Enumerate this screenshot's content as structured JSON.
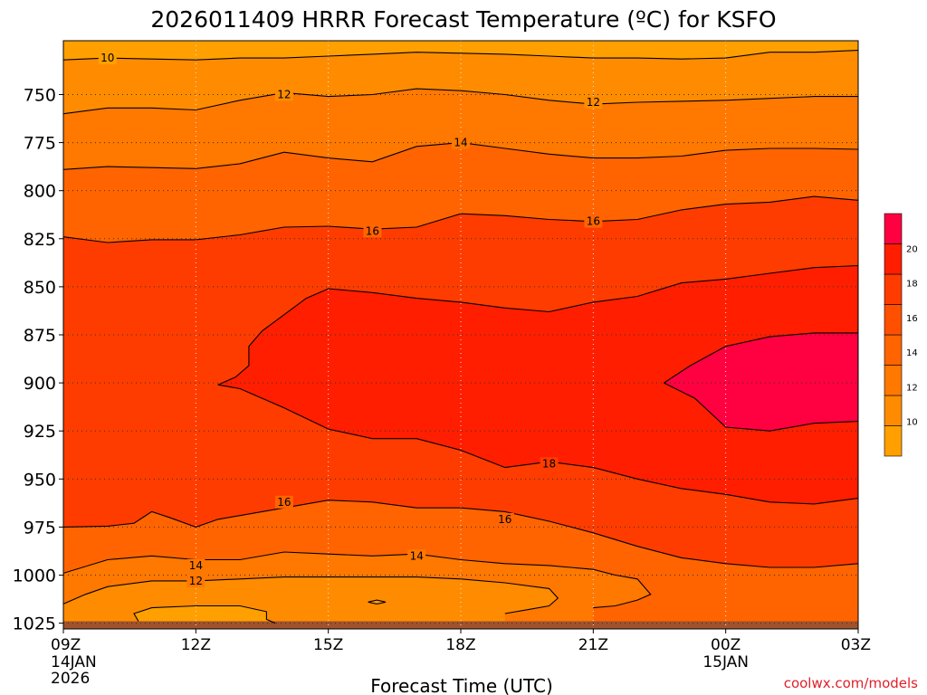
{
  "chart_data": {
    "type": "heatmap",
    "title": "2026011409 HRRR Forecast Temperature (ºC) for KSFO",
    "xlabel": "Forecast Time (UTC)",
    "ylabel": "",
    "credit": "coolwx.com/models",
    "x_ticks": [
      {
        "hour": 0,
        "label": "09Z",
        "sub1": "14JAN",
        "sub2": "2026"
      },
      {
        "hour": 3,
        "label": "12Z",
        "sub1": "",
        "sub2": ""
      },
      {
        "hour": 6,
        "label": "15Z",
        "sub1": "",
        "sub2": ""
      },
      {
        "hour": 9,
        "label": "18Z",
        "sub1": "",
        "sub2": ""
      },
      {
        "hour": 12,
        "label": "21Z",
        "sub1": "",
        "sub2": ""
      },
      {
        "hour": 15,
        "label": "00Z",
        "sub1": "15JAN",
        "sub2": ""
      },
      {
        "hour": 18,
        "label": "03Z",
        "sub1": "",
        "sub2": ""
      }
    ],
    "y_ticks": [
      750,
      775,
      800,
      825,
      850,
      875,
      900,
      925,
      950,
      975,
      1000,
      1025
    ],
    "xlim": [
      0,
      18
    ],
    "ylim_hpa": [
      722,
      1028
    ],
    "colorbar": {
      "ticks": [
        10,
        12,
        14,
        16,
        18,
        20
      ],
      "min": 8,
      "max": 22,
      "colors": [
        "#FFA000",
        "#FF8C00",
        "#FF7800",
        "#FF6400",
        "#FF5000",
        "#FF3C00",
        "#FF1E00",
        "#FF0040"
      ]
    },
    "band_colors": {
      "lt10": "#FFA000",
      "t10_12": "#FF8C00",
      "t12_14": "#FF7800",
      "t14_16": "#FF6400",
      "t16_18": "#FF3C00",
      "t18_20": "#FF1E00",
      "gt20": "#FF0040",
      "ground": "#A0522D"
    },
    "contours": [
      {
        "level": 10,
        "points": [
          [
            0,
            732
          ],
          [
            1,
            731
          ],
          [
            2,
            731.5
          ],
          [
            3,
            732
          ],
          [
            4,
            731
          ],
          [
            5,
            731
          ],
          [
            6,
            730
          ],
          [
            7,
            729
          ],
          [
            8,
            728
          ],
          [
            9,
            728.5
          ],
          [
            10,
            729
          ],
          [
            11,
            730
          ],
          [
            12,
            731
          ],
          [
            13,
            731
          ],
          [
            14,
            731.5
          ],
          [
            15,
            731
          ],
          [
            16,
            728
          ],
          [
            17,
            728
          ],
          [
            18,
            727
          ]
        ],
        "labels": [
          {
            "x": 1,
            "p": 731,
            "text": "10"
          }
        ]
      },
      {
        "level": 12,
        "points": [
          [
            0,
            760
          ],
          [
            1,
            757
          ],
          [
            2,
            757
          ],
          [
            3,
            758
          ],
          [
            4,
            753
          ],
          [
            5,
            749
          ],
          [
            6,
            751
          ],
          [
            7,
            750
          ],
          [
            8,
            747
          ],
          [
            9,
            748
          ],
          [
            10,
            750
          ],
          [
            11,
            753
          ],
          [
            12,
            755
          ],
          [
            13,
            754
          ],
          [
            14,
            753.5
          ],
          [
            15,
            753
          ],
          [
            16,
            752
          ],
          [
            17,
            751
          ],
          [
            18,
            751
          ]
        ],
        "labels": [
          {
            "x": 5,
            "p": 750,
            "text": "12"
          },
          {
            "x": 12,
            "p": 754,
            "text": "12"
          }
        ]
      },
      {
        "level": 14,
        "points": [
          [
            0,
            789
          ],
          [
            1,
            787.5
          ],
          [
            2,
            788
          ],
          [
            3,
            788.5
          ],
          [
            4,
            786
          ],
          [
            5,
            780
          ],
          [
            6,
            783
          ],
          [
            7,
            785
          ],
          [
            8,
            777
          ],
          [
            9,
            775
          ],
          [
            10,
            778
          ],
          [
            11,
            781
          ],
          [
            12,
            783
          ],
          [
            13,
            783
          ],
          [
            14,
            782
          ],
          [
            15,
            779
          ],
          [
            16,
            778
          ],
          [
            17,
            778
          ],
          [
            18,
            778.5
          ]
        ],
        "labels": [
          {
            "x": 9,
            "p": 775,
            "text": "14"
          }
        ]
      },
      {
        "level": 16,
        "points": [
          [
            0,
            824
          ],
          [
            1,
            827
          ],
          [
            2,
            825.5
          ],
          [
            3,
            825.5
          ],
          [
            4,
            823
          ],
          [
            5,
            819
          ],
          [
            6,
            818.5
          ],
          [
            7,
            820
          ],
          [
            8,
            819
          ],
          [
            9,
            812
          ],
          [
            10,
            813
          ],
          [
            11,
            815
          ],
          [
            12,
            816
          ],
          [
            13,
            815
          ],
          [
            14,
            810
          ],
          [
            15,
            807
          ],
          [
            16,
            806
          ],
          [
            17,
            803
          ],
          [
            18,
            805
          ]
        ],
        "labels": [
          {
            "x": 7,
            "p": 821,
            "text": "16"
          },
          {
            "x": 12,
            "p": 816,
            "text": "16"
          }
        ]
      },
      {
        "level": 16,
        "points": [
          [
            0,
            975
          ],
          [
            1,
            974.5
          ],
          [
            1.6,
            973
          ],
          [
            2,
            967
          ],
          [
            2.4,
            970
          ],
          [
            3,
            975
          ],
          [
            3.5,
            971
          ],
          [
            4,
            969
          ],
          [
            5,
            965
          ],
          [
            6,
            961
          ],
          [
            7,
            962
          ],
          [
            8,
            965
          ],
          [
            9,
            965
          ],
          [
            10,
            967
          ],
          [
            11,
            972
          ],
          [
            12,
            978
          ],
          [
            13,
            985
          ],
          [
            14,
            991
          ],
          [
            15,
            994
          ],
          [
            16,
            996
          ],
          [
            17,
            996
          ],
          [
            18,
            994
          ]
        ],
        "labels": [
          {
            "x": 5,
            "p": 962,
            "text": "16"
          },
          {
            "x": 10,
            "p": 971,
            "text": "16"
          }
        ]
      },
      {
        "level": 18,
        "points": [
          [
            3.5,
            901
          ],
          [
            3.9,
            897
          ],
          [
            4.2,
            891
          ],
          [
            4.2,
            881
          ],
          [
            4.5,
            873
          ],
          [
            5.5,
            856
          ],
          [
            6,
            851
          ],
          [
            7,
            853
          ],
          [
            8,
            856
          ],
          [
            9,
            858
          ],
          [
            10,
            861
          ],
          [
            11,
            863
          ],
          [
            12,
            858
          ],
          [
            13,
            855
          ],
          [
            14,
            848
          ],
          [
            15,
            846
          ],
          [
            16,
            843
          ],
          [
            17,
            840
          ],
          [
            18,
            839
          ],
          [
            18,
            960
          ],
          [
            17,
            963
          ],
          [
            16,
            962
          ],
          [
            15,
            958
          ],
          [
            14,
            955
          ],
          [
            13,
            950
          ],
          [
            12,
            944
          ],
          [
            11,
            941
          ],
          [
            10,
            944
          ],
          [
            9,
            935
          ],
          [
            8,
            929
          ],
          [
            7,
            929
          ],
          [
            6,
            924
          ],
          [
            5,
            913
          ],
          [
            4.5,
            908
          ],
          [
            4,
            903
          ],
          [
            3.5,
            901
          ]
        ],
        "labels": [
          {
            "x": 11,
            "p": 942,
            "text": "18"
          }
        ]
      },
      {
        "level": 20,
        "points": [
          [
            13.6,
            900
          ],
          [
            14.2,
            891
          ],
          [
            15,
            881
          ],
          [
            16,
            876
          ],
          [
            17,
            874
          ],
          [
            18,
            874
          ],
          [
            18,
            920
          ],
          [
            17,
            921
          ],
          [
            16,
            925
          ],
          [
            15,
            923
          ],
          [
            14.3,
            908
          ],
          [
            13.6,
            900
          ]
        ],
        "labels": []
      },
      {
        "level": 14,
        "points": [
          [
            0,
            999
          ],
          [
            1,
            992
          ],
          [
            2,
            990
          ],
          [
            3,
            992
          ],
          [
            4,
            992
          ],
          [
            5,
            988
          ],
          [
            6,
            989
          ],
          [
            7,
            990
          ],
          [
            8,
            989
          ],
          [
            9,
            992
          ],
          [
            10,
            994
          ],
          [
            11,
            995
          ],
          [
            12,
            997
          ],
          [
            12.5,
            1000
          ],
          [
            13,
            1002
          ],
          [
            13.3,
            1010
          ],
          [
            13,
            1013
          ],
          [
            12.5,
            1016
          ],
          [
            12,
            1017
          ]
        ],
        "labels": [
          {
            "x": 3,
            "p": 995,
            "text": "14"
          },
          {
            "x": 8,
            "p": 990,
            "text": "14"
          }
        ]
      },
      {
        "level": 12,
        "points": [
          [
            0,
            1015
          ],
          [
            0.5,
            1010
          ],
          [
            1,
            1006
          ],
          [
            2,
            1003
          ],
          [
            3,
            1003
          ],
          [
            4,
            1002
          ],
          [
            5,
            1001
          ],
          [
            6,
            1001
          ],
          [
            7,
            1001
          ],
          [
            8,
            1001
          ],
          [
            9,
            1002
          ],
          [
            10,
            1004
          ],
          [
            11,
            1007
          ],
          [
            11.2,
            1012
          ],
          [
            11,
            1016
          ],
          [
            10.5,
            1018
          ],
          [
            10,
            1020
          ]
        ],
        "labels": [
          {
            "x": 3,
            "p": 1003,
            "text": "12"
          }
        ]
      },
      {
        "level": 10,
        "points": [
          [
            1.7,
            1024
          ],
          [
            1.6,
            1020
          ],
          [
            2,
            1017
          ],
          [
            3,
            1016
          ],
          [
            4,
            1016
          ],
          [
            4.6,
            1019
          ],
          [
            4.6,
            1023
          ],
          [
            4.8,
            1025
          ]
        ],
        "labels": []
      },
      {
        "level": 10,
        "points": [
          [
            6.9,
            1014
          ],
          [
            7.1,
            1013
          ],
          [
            7.3,
            1014
          ],
          [
            7.1,
            1015
          ],
          [
            6.9,
            1014
          ]
        ],
        "labels": []
      }
    ]
  }
}
